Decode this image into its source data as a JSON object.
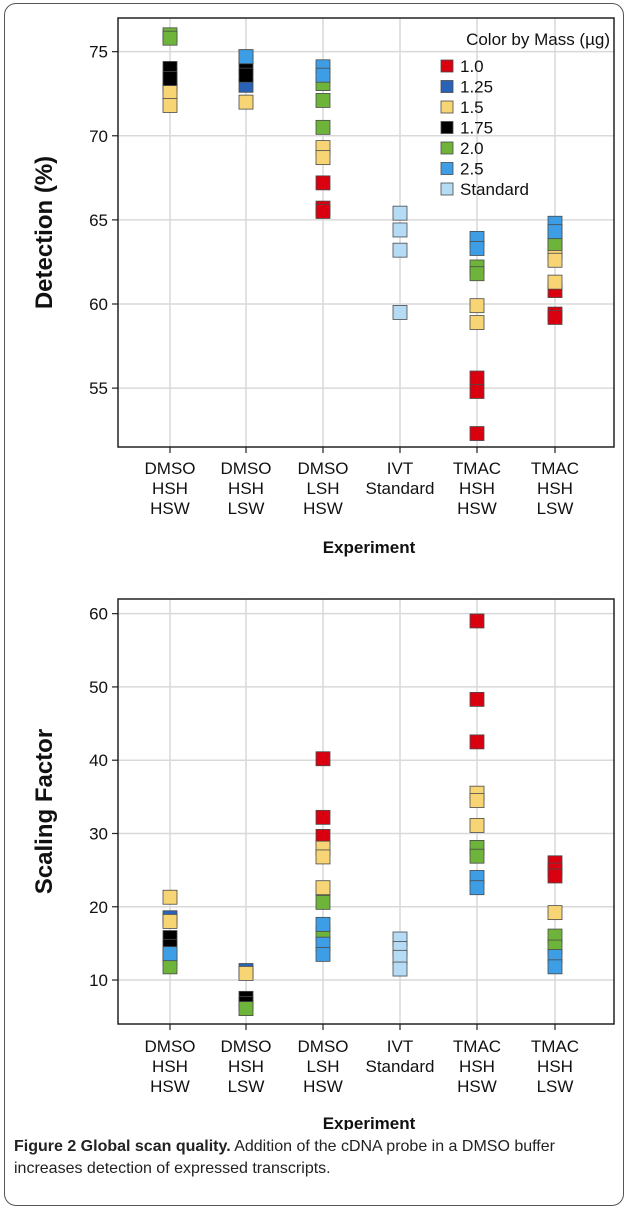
{
  "caption": {
    "label": "Figure 2 Global scan quality.",
    "text": " Addition of the cDNA probe in a DMSO buffer increases detection of expressed transcripts."
  },
  "legend": {
    "title": "Color by Mass (µg)",
    "entries": [
      {
        "label": "1.0",
        "color": "#d90010"
      },
      {
        "label": "1.25",
        "color": "#2a62b8"
      },
      {
        "label": "1.5",
        "color": "#f7d575"
      },
      {
        "label": "1.75",
        "color": "#000000"
      },
      {
        "label": "2.0",
        "color": "#6fb43a"
      },
      {
        "label": "2.5",
        "color": "#3d9ee6"
      },
      {
        "label": "Standard",
        "color": "#b6dcf5"
      }
    ]
  },
  "chart_data": [
    {
      "type": "scatter",
      "ylabel": "Detection (%)",
      "xlabel": "Experiment",
      "ylim": [
        51.5,
        77
      ],
      "yticks": [
        55,
        60,
        65,
        70,
        75
      ],
      "grid": true,
      "legend_position": "top-right",
      "categories": [
        [
          "DMSO",
          "HSH",
          "HSW"
        ],
        [
          "DMSO",
          "HSH",
          "LSW"
        ],
        [
          "DMSO",
          "LSH",
          "HSW"
        ],
        [
          "IVT",
          "Standard"
        ],
        [
          "TMAC",
          "HSH",
          "HSW"
        ],
        [
          "TMAC",
          "HSH",
          "LSW"
        ]
      ],
      "series": [
        {
          "name": "1.0",
          "color": "#d90010",
          "points": [
            [
              2,
              67.2
            ],
            [
              2,
              65.7
            ],
            [
              2,
              65.5
            ],
            [
              4,
              55.6
            ],
            [
              4,
              54.8
            ],
            [
              4,
              52.3
            ],
            [
              5,
              60.8
            ],
            [
              5,
              59.4
            ],
            [
              5,
              59.2
            ]
          ]
        },
        {
          "name": "1.25",
          "color": "#2a62b8",
          "points": [
            [
              0,
              73.1
            ],
            [
              1,
              73.0
            ]
          ]
        },
        {
          "name": "1.5",
          "color": "#f7d575",
          "points": [
            [
              0,
              72.6
            ],
            [
              0,
              71.8
            ],
            [
              1,
              72.0
            ],
            [
              2,
              69.3
            ],
            [
              2,
              68.7
            ],
            [
              4,
              59.9
            ],
            [
              4,
              58.9
            ],
            [
              5,
              63.1
            ],
            [
              5,
              62.6
            ],
            [
              5,
              61.3
            ]
          ]
        },
        {
          "name": "1.75",
          "color": "#000000",
          "points": [
            [
              0,
              74.0
            ],
            [
              0,
              73.4
            ],
            [
              1,
              74.0
            ],
            [
              1,
              73.6
            ]
          ]
        },
        {
          "name": "2.0",
          "color": "#6fb43a",
          "points": [
            [
              0,
              76.0
            ],
            [
              0,
              75.8
            ],
            [
              1,
              74.7
            ],
            [
              2,
              73.1
            ],
            [
              2,
              72.1
            ],
            [
              2,
              70.5
            ],
            [
              4,
              62.2
            ],
            [
              4,
              61.8
            ],
            [
              5,
              63.9
            ],
            [
              5,
              63.6
            ]
          ]
        },
        {
          "name": "2.5",
          "color": "#3d9ee6",
          "points": [
            [
              1,
              74.7
            ],
            [
              2,
              74.1
            ],
            [
              2,
              73.6
            ],
            [
              4,
              63.9
            ],
            [
              4,
              63.3
            ],
            [
              5,
              64.8
            ],
            [
              5,
              64.3
            ]
          ]
        },
        {
          "name": "Standard",
          "color": "#b6dcf5",
          "points": [
            [
              3,
              65.4
            ],
            [
              3,
              64.4
            ],
            [
              3,
              63.2
            ],
            [
              3,
              59.5
            ]
          ]
        }
      ]
    },
    {
      "type": "scatter",
      "ylabel": "Scaling Factor",
      "xlabel": "Experiment",
      "ylim": [
        4,
        62
      ],
      "yticks": [
        10,
        20,
        30,
        40,
        50,
        60
      ],
      "grid": true,
      "categories": [
        [
          "DMSO",
          "HSH",
          "HSW"
        ],
        [
          "DMSO",
          "HSH",
          "LSW"
        ],
        [
          "DMSO",
          "LSH",
          "HSW"
        ],
        [
          "IVT",
          "Standard"
        ],
        [
          "TMAC",
          "HSH",
          "HSW"
        ],
        [
          "TMAC",
          "HSH",
          "LSW"
        ]
      ],
      "series": [
        {
          "name": "1.0",
          "color": "#d90010",
          "points": [
            [
              2,
              40.2
            ],
            [
              2,
              32.2
            ],
            [
              2,
              29.6
            ],
            [
              4,
              59.0
            ],
            [
              4,
              48.3
            ],
            [
              4,
              42.5
            ],
            [
              5,
              26.0
            ],
            [
              5,
              25.0
            ],
            [
              5,
              24.2
            ]
          ]
        },
        {
          "name": "1.25",
          "color": "#2a62b8",
          "points": [
            [
              0,
              18.5
            ],
            [
              1,
              11.3
            ]
          ]
        },
        {
          "name": "1.5",
          "color": "#f7d575",
          "points": [
            [
              0,
              21.3
            ],
            [
              0,
              18.0
            ],
            [
              1,
              10.9
            ],
            [
              2,
              28.0
            ],
            [
              2,
              26.8
            ],
            [
              2,
              22.6
            ],
            [
              4,
              35.5
            ],
            [
              4,
              34.5
            ],
            [
              4,
              31.1
            ],
            [
              5,
              19.2
            ]
          ]
        },
        {
          "name": "1.75",
          "color": "#000000",
          "points": [
            [
              0,
              15.8
            ],
            [
              0,
              14.6
            ],
            [
              1,
              7.5
            ],
            [
              1,
              6.8
            ]
          ]
        },
        {
          "name": "2.0",
          "color": "#6fb43a",
          "points": [
            [
              0,
              12.9
            ],
            [
              0,
              11.8
            ],
            [
              1,
              6.1
            ],
            [
              2,
              20.6
            ],
            [
              2,
              16.3
            ],
            [
              4,
              28.1
            ],
            [
              4,
              26.9
            ],
            [
              5,
              16.0
            ],
            [
              5,
              14.5
            ]
          ]
        },
        {
          "name": "2.5",
          "color": "#3d9ee6",
          "points": [
            [
              0,
              13.6
            ],
            [
              2,
              17.6
            ],
            [
              2,
              14.9
            ],
            [
              2,
              13.5
            ],
            [
              4,
              24.0
            ],
            [
              4,
              22.6
            ],
            [
              5,
              13.2
            ],
            [
              5,
              11.8
            ]
          ]
        },
        {
          "name": "Standard",
          "color": "#b6dcf5",
          "points": [
            [
              3,
              15.6
            ],
            [
              3,
              14.3
            ],
            [
              3,
              13.1
            ],
            [
              3,
              11.5
            ]
          ]
        }
      ]
    }
  ]
}
